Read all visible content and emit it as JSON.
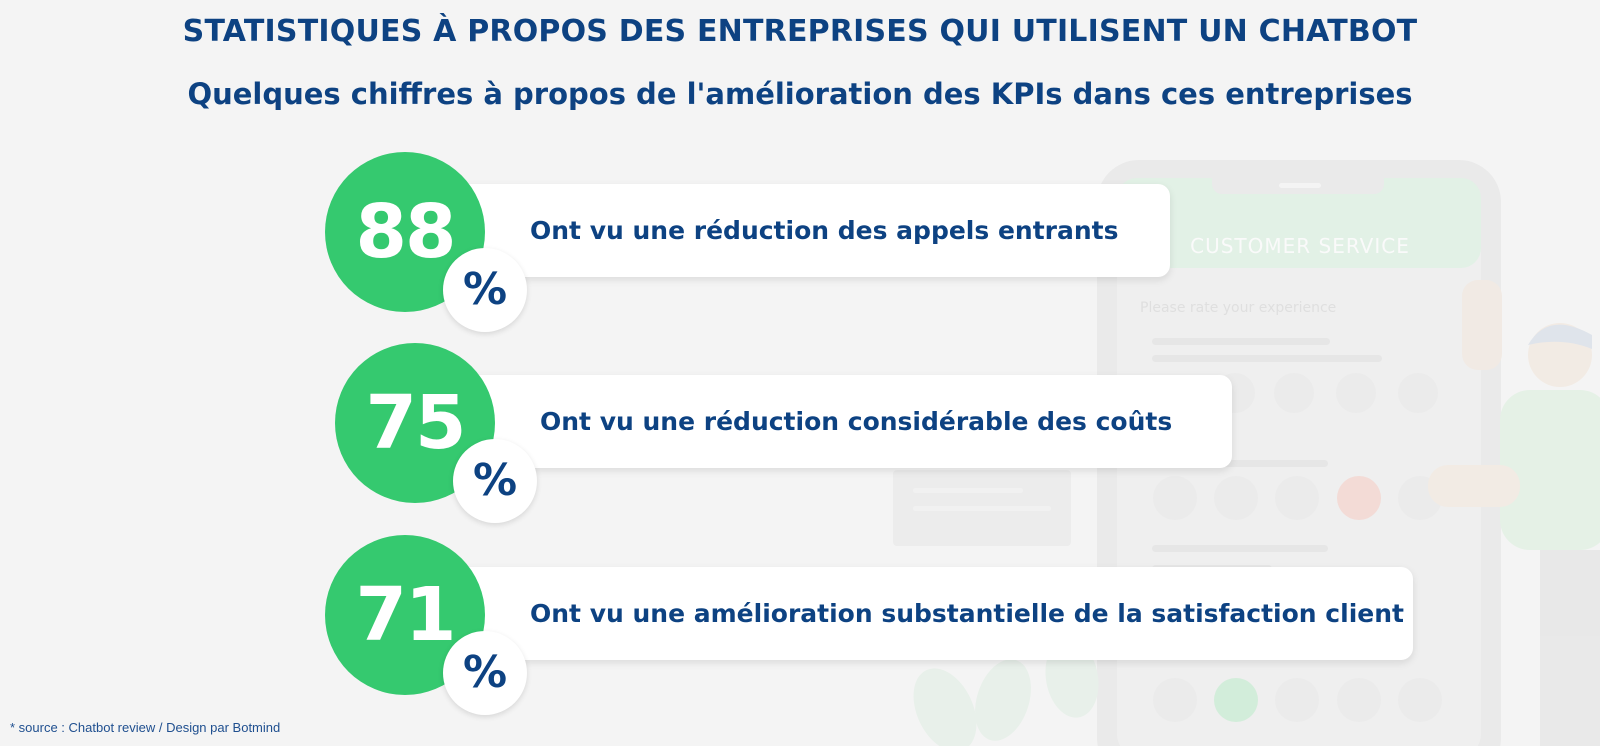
{
  "title": "STATISTIQUES À PROPOS DES ENTREPRISES QUI UTILISENT UN CHATBOT",
  "subtitle": "Quelques chiffres à propos de l'amélioration des KPIs dans ces entreprises",
  "stats": [
    {
      "value": "88",
      "percent_sign": "%",
      "text": "Ont vu une réduction des appels entrants"
    },
    {
      "value": "75",
      "percent_sign": "%",
      "text": "Ont vu une réduction considérable des coûts"
    },
    {
      "value": "71",
      "percent_sign": "%",
      "text": "Ont vu une amélioration substantielle de la satisfaction client"
    }
  ],
  "background_phone": {
    "header": "CUSTOMER SERVICE",
    "prompt": "Please rate your experience"
  },
  "source": "* source : Chatbot review / Design par Botmind",
  "colors": {
    "accent_green": "#35c96f",
    "navy": "#0d4282",
    "background": "#f4f4f4",
    "card": "#ffffff"
  }
}
